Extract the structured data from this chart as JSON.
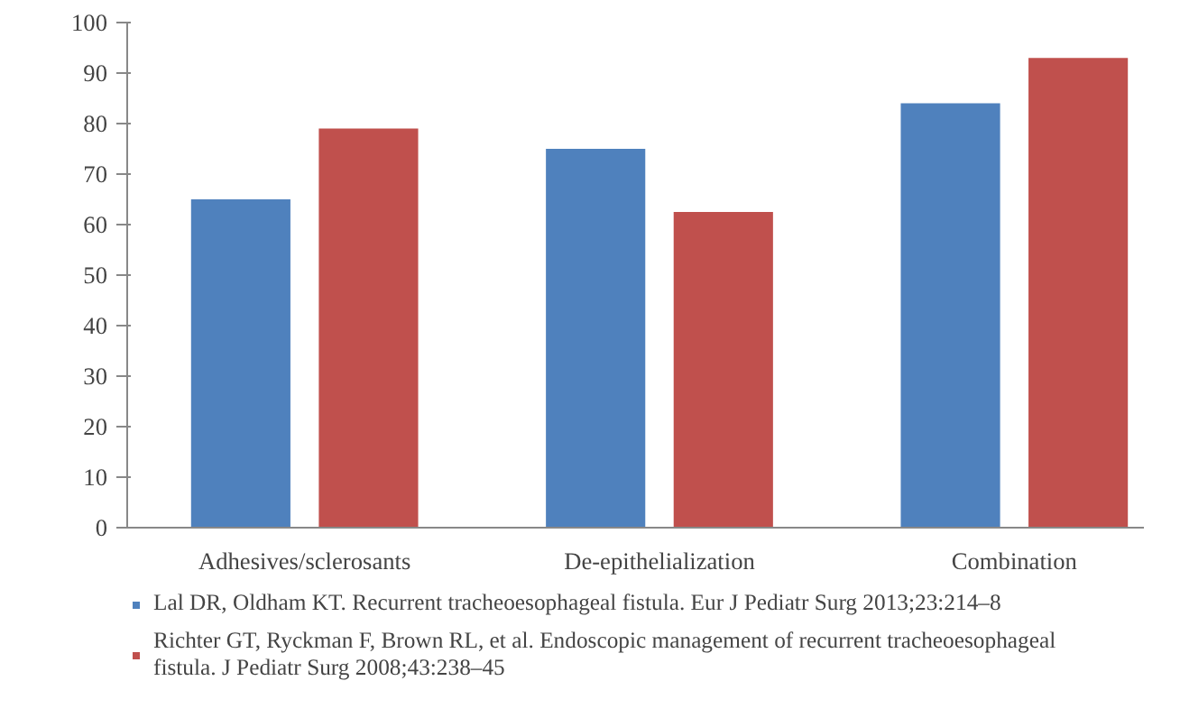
{
  "chart_data": {
    "type": "bar",
    "categories": [
      "Adhesives/sclerosants",
      "De-epithelialization",
      "Combination"
    ],
    "series": [
      {
        "name": "Lal DR, Oldham KT. Recurrent tracheoesophageal fistula. Eur J Pediatr Surg 2013;23:214–8",
        "color": "#4f81bd",
        "values": [
          65,
          75,
          84
        ]
      },
      {
        "name": "Richter GT, Ryckman F, Brown RL, et al. Endoscopic management of recurrent tracheoesophageal fistula. J Pediatr Surg 2008;43:238–45",
        "color": "#c0504d",
        "values": [
          79,
          62.5,
          93
        ]
      }
    ],
    "ylim": [
      0,
      100
    ],
    "yticks": [
      0,
      10,
      20,
      30,
      40,
      50,
      60,
      70,
      80,
      90,
      100
    ],
    "grid": false,
    "legend": "bottom"
  }
}
